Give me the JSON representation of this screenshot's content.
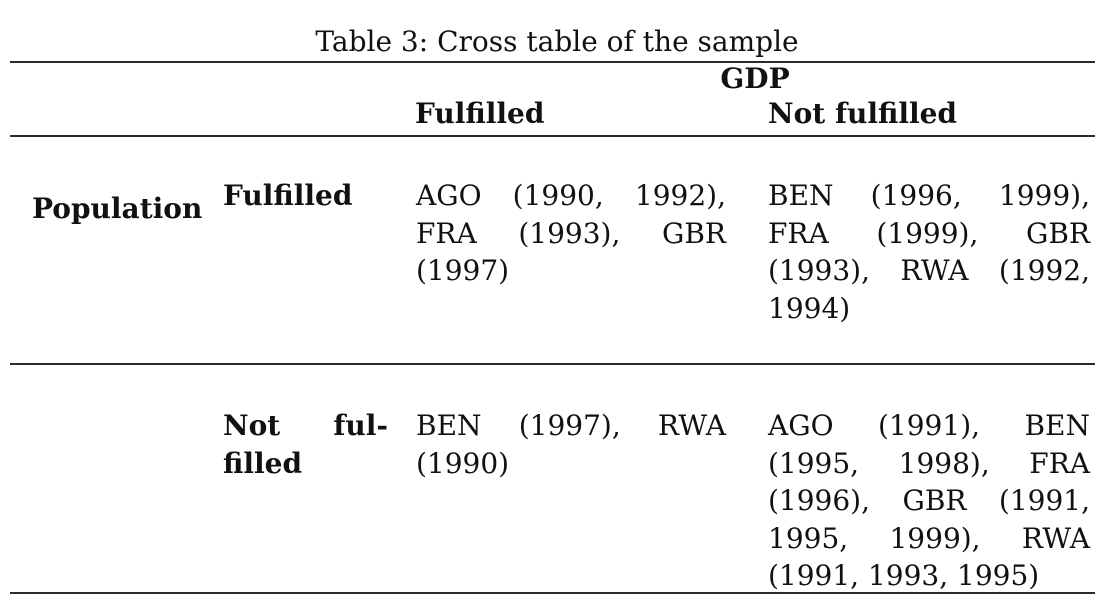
{
  "title": "Table 3: Cross table of the sample",
  "table": {
    "col_group_header": "GDP",
    "row_group_header": "Population",
    "col_headers": {
      "fulfilled": "Fulfilled",
      "not_fulfilled": "Not fulfilled"
    },
    "rows": [
      {
        "label_lines": [
          "Fulfilled"
        ],
        "gdp_fulfilled_lines": [
          "AGO (1990, 1992),",
          "FRA (1993), GBR",
          "(1997)"
        ],
        "gdp_not_fulfilled_lines": [
          "BEN (1996, 1999),",
          "FRA (1999), GBR",
          "(1993), RWA (1992,",
          "1994)"
        ]
      },
      {
        "label_lines": [
          "Not ful-",
          "filled"
        ],
        "gdp_fulfilled_lines": [
          "BEN (1997), RWA",
          "(1990)"
        ],
        "gdp_not_fulfilled_lines": [
          "AGO (1991), BEN",
          "(1995, 1998), FRA",
          "(1996), GBR (1991,",
          "1995, 1999), RWA",
          "(1991, 1993, 1995)"
        ]
      }
    ]
  }
}
